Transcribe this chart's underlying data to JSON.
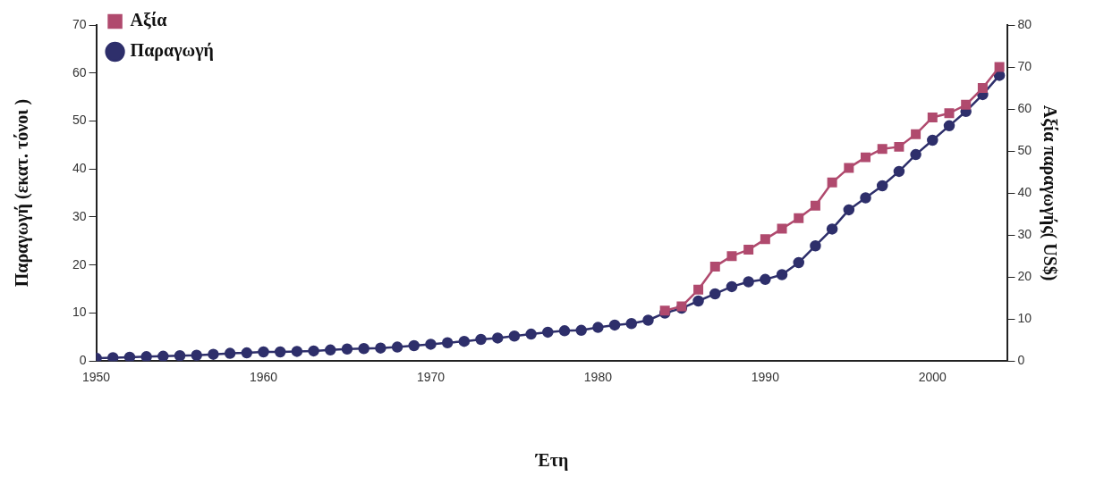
{
  "chart_data": {
    "type": "line",
    "xlabel": "Έτη",
    "ylabel": "Παραγωγή (εκατ. τόνοι )",
    "y2label": "Αξία παραγωγής( US$)",
    "xlim": [
      1950,
      2004.5
    ],
    "xticks": [
      1950,
      1960,
      1970,
      1980,
      1990,
      2000
    ],
    "ylim": [
      0,
      70
    ],
    "yticks": [
      0,
      10,
      20,
      30,
      40,
      50,
      60,
      70
    ],
    "y2lim": [
      0,
      80
    ],
    "y2ticks": [
      0,
      10,
      20,
      30,
      40,
      50,
      60,
      70,
      80
    ],
    "grid": false,
    "legend": "top left",
    "line_style": "solid",
    "series": [
      {
        "name": "Παραγωγή",
        "color": "#2e2f6b",
        "marker": "circle",
        "x": [
          1950,
          1951,
          1952,
          1953,
          1954,
          1955,
          1956,
          1957,
          1958,
          1959,
          1960,
          1961,
          1962,
          1963,
          1964,
          1965,
          1966,
          1967,
          1968,
          1969,
          1970,
          1971,
          1972,
          1973,
          1974,
          1975,
          1976,
          1977,
          1978,
          1979,
          1980,
          1981,
          1982,
          1983,
          1984,
          1985,
          1986,
          1987,
          1988,
          1989,
          1990,
          1991,
          1992,
          1993,
          1994,
          1995,
          1996,
          1997,
          1998,
          1999,
          2000,
          2001,
          2002,
          2003,
          2004
        ],
        "values": [
          0.6,
          0.7,
          0.8,
          0.9,
          1.0,
          1.1,
          1.2,
          1.4,
          1.6,
          1.7,
          1.9,
          1.9,
          2.0,
          2.1,
          2.3,
          2.5,
          2.6,
          2.7,
          2.9,
          3.2,
          3.5,
          3.8,
          4.1,
          4.5,
          4.8,
          5.2,
          5.6,
          6.0,
          6.3,
          6.4,
          7.0,
          7.5,
          7.8,
          8.5,
          10.0,
          11.0,
          12.5,
          14.0,
          15.5,
          16.5,
          17.0,
          18.0,
          20.5,
          24.0,
          27.5,
          31.5,
          34.0,
          36.5,
          39.5,
          43.0,
          46.0,
          49.0,
          52.0,
          55.5,
          59.5
        ]
      },
      {
        "name": "Αξία",
        "color": "#b04a6e",
        "marker": "square",
        "axis": "y2",
        "x": [
          1984,
          1985,
          1986,
          1987,
          1988,
          1989,
          1990,
          1991,
          1992,
          1993,
          1994,
          1995,
          1996,
          1997,
          1998,
          1999,
          2000,
          2001,
          2002,
          2003,
          2004
        ],
        "values": [
          12,
          13,
          17,
          22.5,
          25,
          26.5,
          29,
          31.5,
          34,
          37,
          42.5,
          46,
          48.5,
          50.5,
          51,
          54,
          58,
          59,
          61,
          65,
          70
        ]
      }
    ]
  }
}
